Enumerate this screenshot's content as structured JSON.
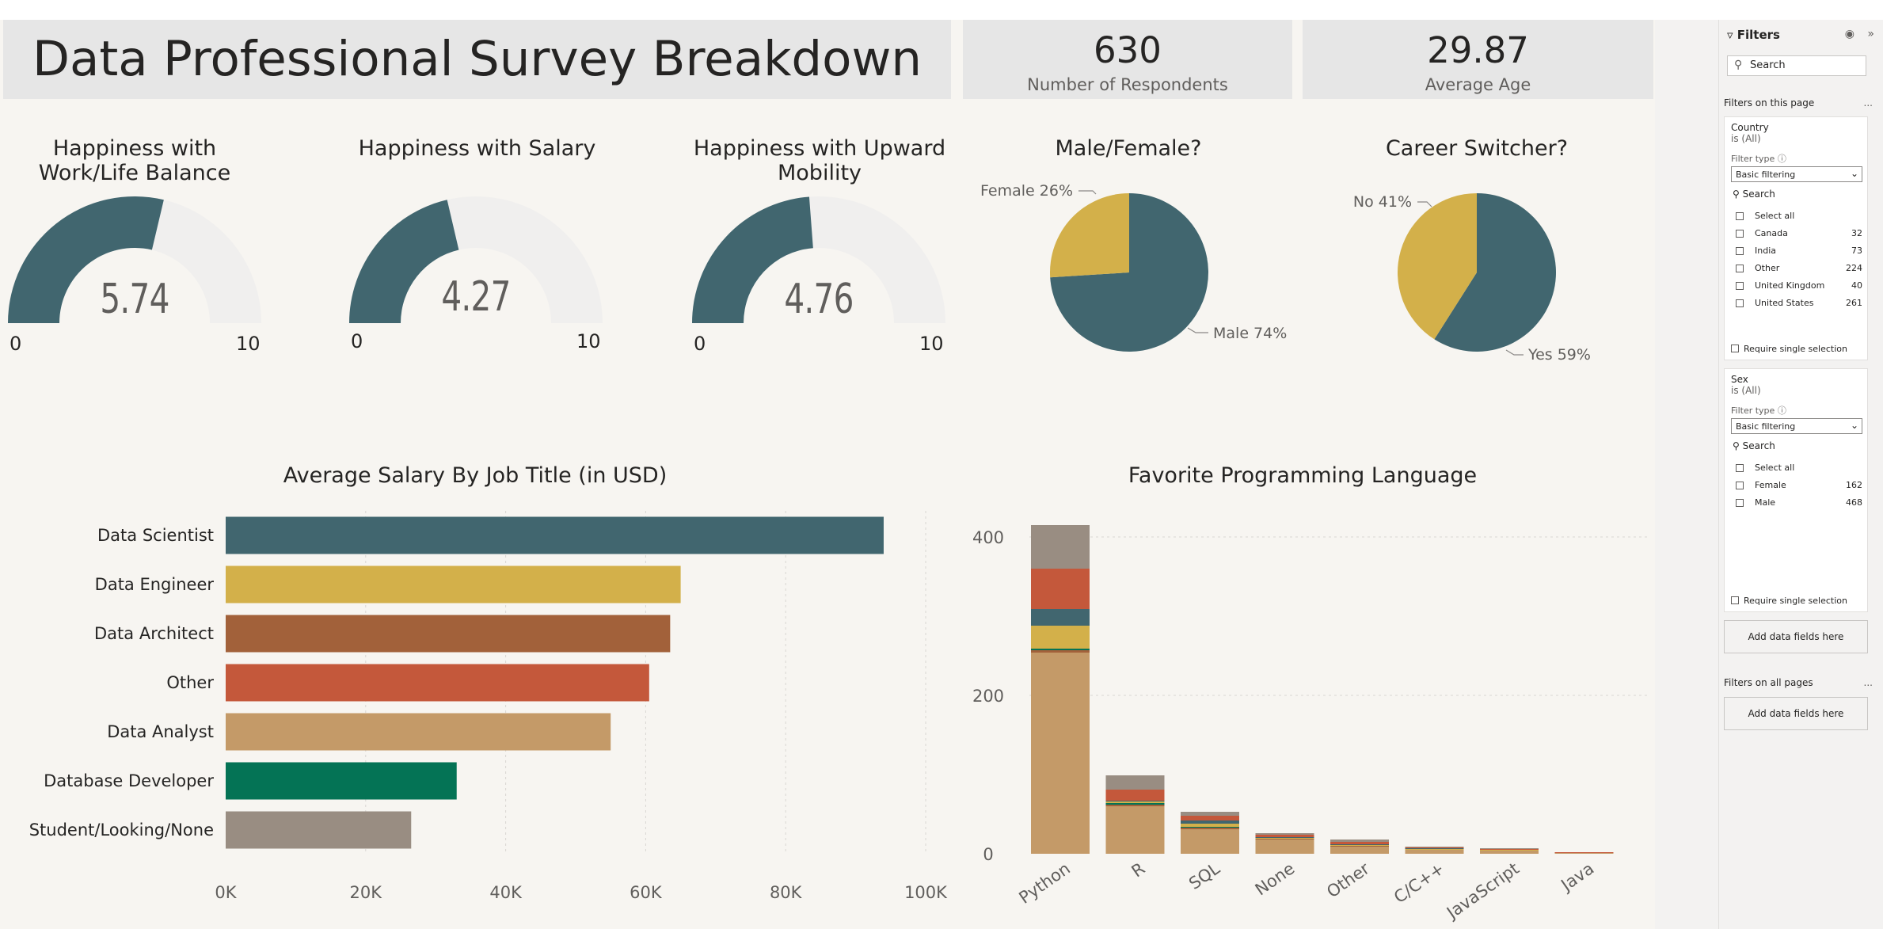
{
  "header": {
    "title": "Data Professional Survey Breakdown"
  },
  "kpis": [
    {
      "value": "630",
      "label": "Number of Respondents"
    },
    {
      "value": "29.87",
      "label": "Average Age"
    }
  ],
  "colors": {
    "teal": "#41666f",
    "gold": "#d3b04a",
    "brown": "#a2613a",
    "orange": "#c4583b",
    "tan": "#c49a68",
    "green": "#047355",
    "taupe": "#998d82",
    "gauge_track": "#f0efee"
  },
  "gauges": [
    {
      "title": "Happiness with Work/Life Balance",
      "value": 5.74,
      "value_label": "5.74",
      "min_label": "0",
      "max_label": "10",
      "min": 0,
      "max": 10
    },
    {
      "title": "Happiness with Salary",
      "value": 4.27,
      "value_label": "4.27",
      "min_label": "0",
      "max_label": "10",
      "min": 0,
      "max": 10
    },
    {
      "title": "Happiness with Upward Mobility",
      "value": 4.76,
      "value_label": "4.76",
      "min_label": "0",
      "max_label": "10",
      "min": 0,
      "max": 10
    }
  ],
  "chart_data": [
    {
      "type": "pie",
      "title": "Male/Female?",
      "slices": [
        {
          "label": "Female 26%",
          "value": 26,
          "color": "#d3b04a"
        },
        {
          "label": "Male 74%",
          "value": 74,
          "color": "#41666f"
        }
      ]
    },
    {
      "type": "pie",
      "title": "Career Switcher?",
      "slices": [
        {
          "label": "No 41%",
          "value": 41,
          "color": "#d3b04a"
        },
        {
          "label": "Yes 59%",
          "value": 59,
          "color": "#41666f"
        }
      ]
    },
    {
      "type": "bar",
      "orientation": "horizontal",
      "title": "Average Salary By Job Title (in USD)",
      "categories": [
        "Data Scientist",
        "Data Engineer",
        "Data Architect",
        "Other",
        "Data Analyst",
        "Database Developer",
        "Student/Looking/None"
      ],
      "values": [
        94000,
        65000,
        63500,
        60500,
        55000,
        33000,
        26500
      ],
      "colors": [
        "#41666f",
        "#d3b04a",
        "#a2613a",
        "#c4583b",
        "#c49a68",
        "#047355",
        "#998d82"
      ],
      "xlim": [
        0,
        100000
      ],
      "xticks": [
        {
          "value": 0,
          "label": "0K"
        },
        {
          "value": 20000,
          "label": "20K"
        },
        {
          "value": 40000,
          "label": "40K"
        },
        {
          "value": 60000,
          "label": "60K"
        },
        {
          "value": 80000,
          "label": "80K"
        },
        {
          "value": 100000,
          "label": "100K"
        }
      ],
      "grid": true
    },
    {
      "type": "bar",
      "stacked": true,
      "title": "Favorite Programming Language",
      "categories": [
        "Python",
        "R",
        "SQL",
        "None",
        "Other",
        "C/C++",
        "JavaScript",
        "Java"
      ],
      "series": [
        {
          "color": "#c49a68",
          "values": [
            254,
            60,
            31,
            18,
            9,
            5,
            4,
            1
          ]
        },
        {
          "color": "#a2613a",
          "values": [
            3,
            2,
            2,
            1,
            1,
            0,
            0,
            0
          ]
        },
        {
          "color": "#047355",
          "values": [
            2,
            2,
            1,
            0,
            0,
            0,
            0,
            0
          ]
        },
        {
          "color": "#d3b04a",
          "values": [
            29,
            2,
            4,
            1,
            1,
            1,
            1,
            0
          ]
        },
        {
          "color": "#41666f",
          "values": [
            21,
            1,
            4,
            1,
            1,
            1,
            0,
            0
          ]
        },
        {
          "color": "#c4583b",
          "values": [
            51,
            14,
            6,
            3,
            3,
            1,
            1,
            1
          ]
        },
        {
          "color": "#998d82",
          "values": [
            55,
            18,
            5,
            2,
            3,
            1,
            1,
            0
          ]
        }
      ],
      "ylim": [
        0,
        440
      ],
      "yticks": [
        {
          "value": 0,
          "label": "0"
        },
        {
          "value": 200,
          "label": "200"
        },
        {
          "value": 400,
          "label": "400"
        }
      ],
      "grid": true
    }
  ],
  "filters": {
    "title": "Filters",
    "search_placeholder": "Search",
    "on_page_label": "Filters on this page",
    "on_all_pages_label": "Filters on all pages",
    "more": "...",
    "cards": [
      {
        "field": "Country",
        "state": "is (All)",
        "filter_type_label": "Filter type",
        "filter_type": "Basic filtering",
        "search": "Search",
        "items": [
          {
            "label": "Select all",
            "count": ""
          },
          {
            "label": "Canada",
            "count": "32"
          },
          {
            "label": "India",
            "count": "73"
          },
          {
            "label": "Other",
            "count": "224"
          },
          {
            "label": "United Kingdom",
            "count": "40"
          },
          {
            "label": "United States",
            "count": "261"
          }
        ],
        "require_single": "Require single selection"
      },
      {
        "field": "Sex",
        "state": "is (All)",
        "filter_type_label": "Filter type",
        "filter_type": "Basic filtering",
        "search": "Search",
        "items": [
          {
            "label": "Select all",
            "count": ""
          },
          {
            "label": "Female",
            "count": "162"
          },
          {
            "label": "Male",
            "count": "468"
          }
        ],
        "require_single": "Require single selection"
      }
    ],
    "add_fields_label": "Add data fields here"
  }
}
